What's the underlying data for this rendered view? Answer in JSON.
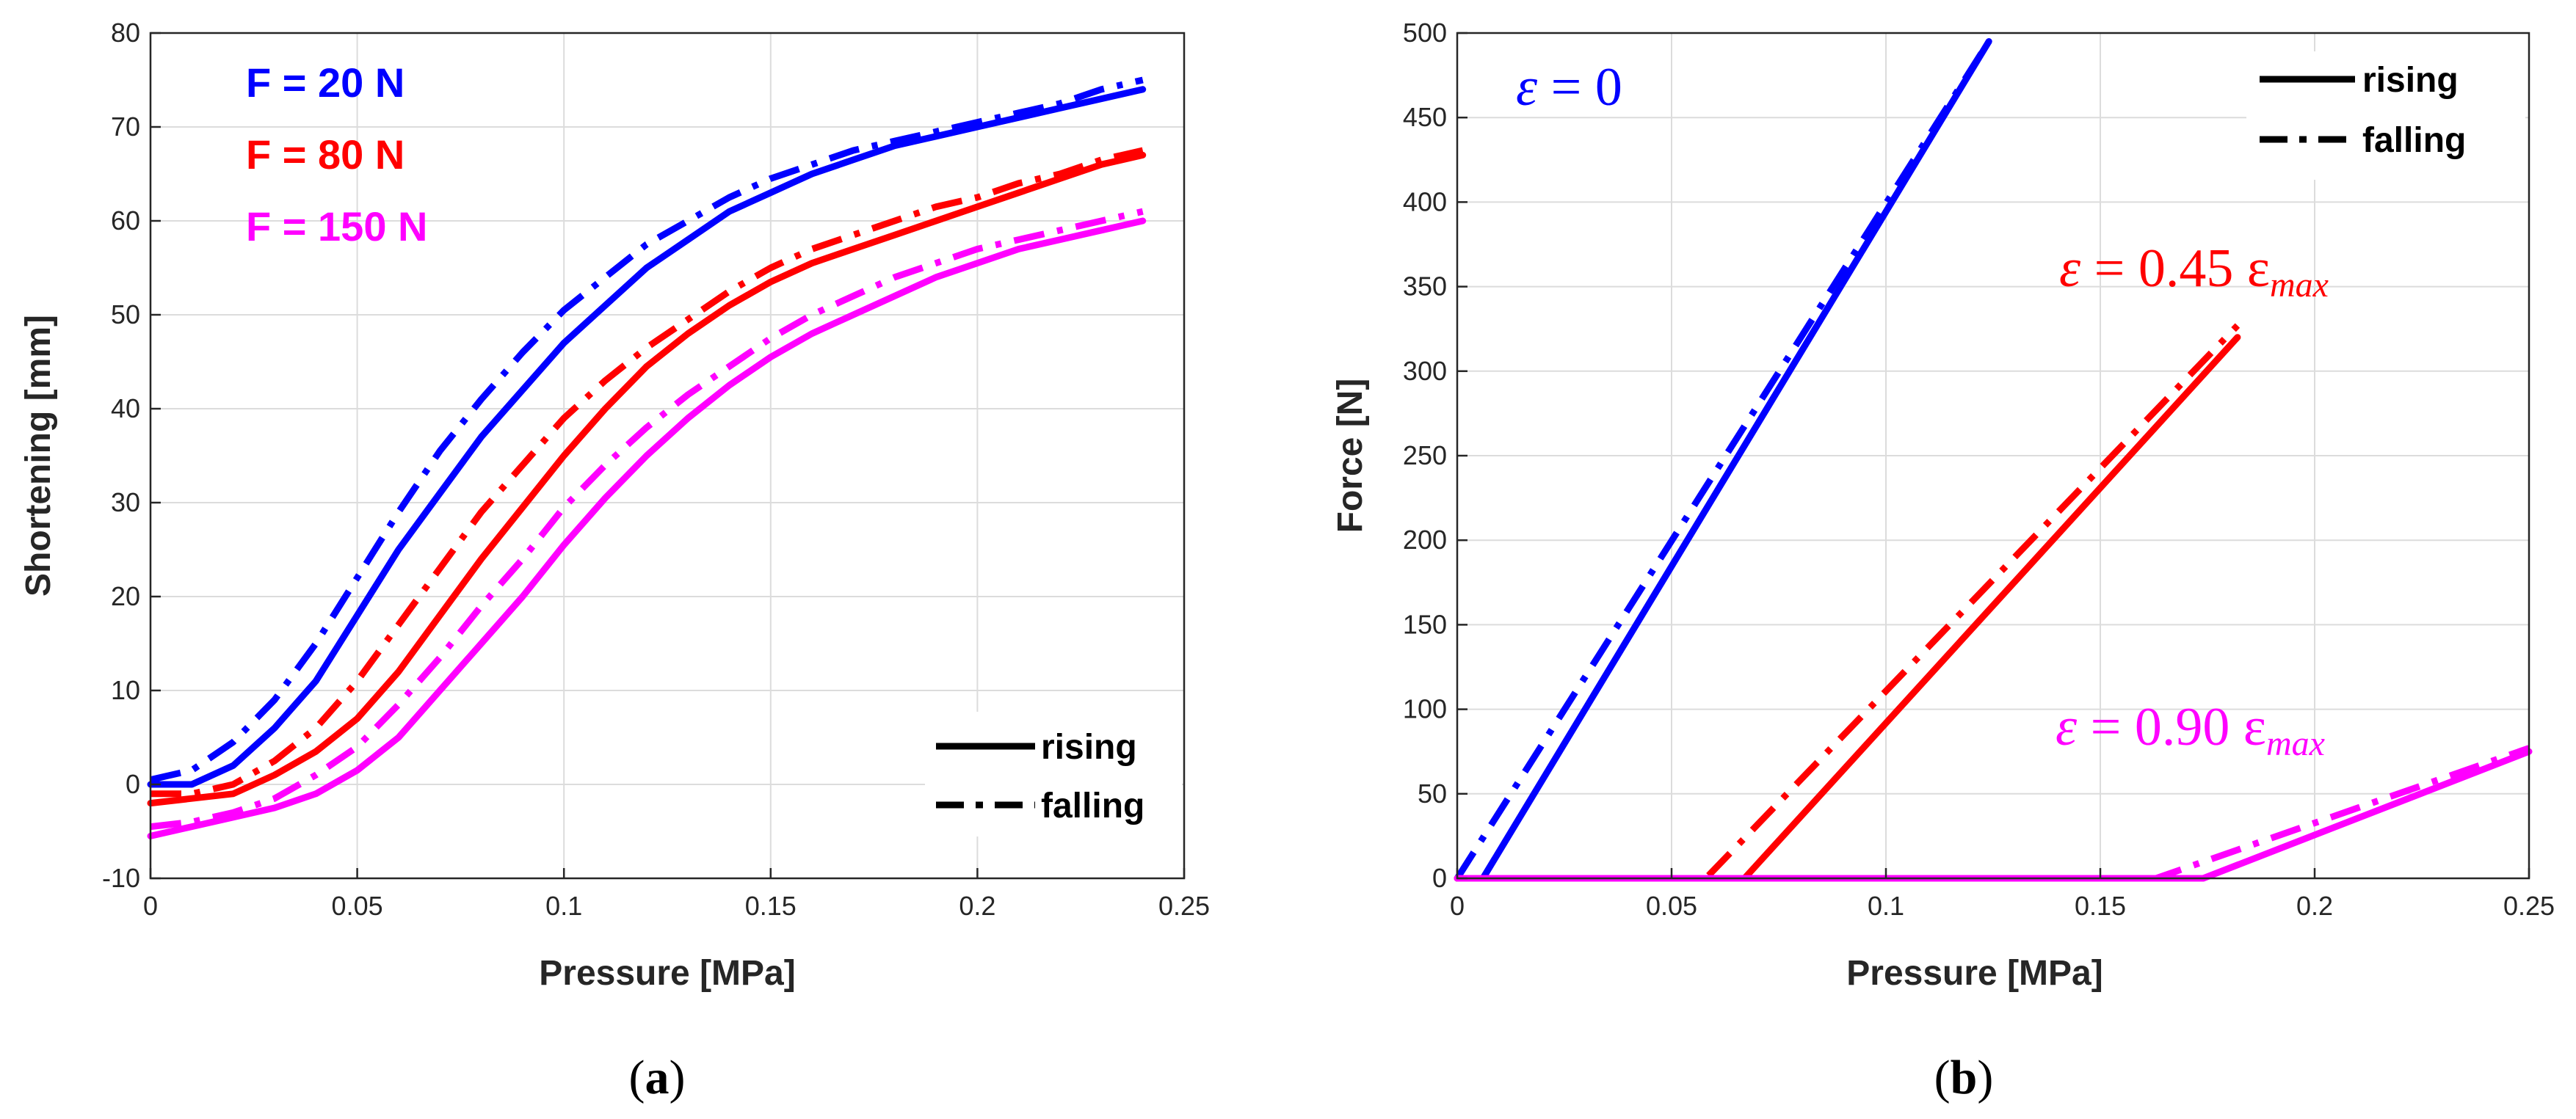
{
  "chart_data": [
    {
      "id": "a",
      "type": "line",
      "caption_letter": "a",
      "xlabel": "Pressure [MPa]",
      "ylabel": "Shortening [mm]",
      "xlim": [
        0,
        0.25
      ],
      "ylim": [
        -10,
        80
      ],
      "xticks": [
        0,
        0.05,
        0.1,
        0.15,
        0.2,
        0.25
      ],
      "xtick_labels": [
        "0",
        "0.05",
        "0.1",
        "0.15",
        "0.2",
        "0.25"
      ],
      "yticks": [
        -10,
        0,
        10,
        20,
        30,
        40,
        50,
        60,
        70,
        80
      ],
      "ytick_labels": [
        "-10",
        "0",
        "10",
        "20",
        "30",
        "40",
        "50",
        "60",
        "70",
        "80"
      ],
      "grid": true,
      "legend": {
        "position": "bottom-right",
        "entries": [
          {
            "label": "rising",
            "style": "solid"
          },
          {
            "label": "falling",
            "style": "dashdot"
          }
        ]
      },
      "annotations": [
        {
          "text": "F = 20 N",
          "color": "#0000ff"
        },
        {
          "text": "F = 80 N",
          "color": "#ff0000"
        },
        {
          "text": "F = 150 N",
          "color": "#ff00ff"
        }
      ],
      "series": [
        {
          "name": "F = 20 N rising",
          "color": "#0000ff",
          "style": "solid",
          "x": [
            0,
            0.01,
            0.02,
            0.03,
            0.04,
            0.05,
            0.06,
            0.07,
            0.08,
            0.09,
            0.1,
            0.11,
            0.12,
            0.13,
            0.14,
            0.15,
            0.16,
            0.17,
            0.18,
            0.19,
            0.2,
            0.21,
            0.22,
            0.23,
            0.24
          ],
          "y": [
            0,
            0,
            2,
            6,
            11,
            18,
            25,
            31,
            37,
            42,
            47,
            51,
            55,
            58,
            61,
            63,
            65,
            66.5,
            68,
            69,
            70,
            71,
            72,
            73,
            74
          ]
        },
        {
          "name": "F = 20 N falling",
          "color": "#0000ff",
          "style": "dashdot",
          "x": [
            0,
            0.01,
            0.02,
            0.03,
            0.04,
            0.05,
            0.06,
            0.07,
            0.08,
            0.09,
            0.1,
            0.11,
            0.12,
            0.13,
            0.14,
            0.15,
            0.16,
            0.17,
            0.18,
            0.19,
            0.2,
            0.21,
            0.22,
            0.23,
            0.24
          ],
          "y": [
            0.5,
            1.5,
            4.5,
            9,
            15,
            22,
            29,
            35.5,
            41,
            46,
            50.5,
            54,
            57.5,
            60,
            62.5,
            64.5,
            66,
            67.5,
            68.5,
            69.5,
            70.5,
            71.5,
            72.5,
            74,
            75
          ]
        },
        {
          "name": "F = 80 N rising",
          "color": "#ff0000",
          "style": "solid",
          "x": [
            0,
            0.01,
            0.02,
            0.03,
            0.04,
            0.05,
            0.06,
            0.07,
            0.08,
            0.09,
            0.1,
            0.11,
            0.12,
            0.13,
            0.14,
            0.15,
            0.16,
            0.17,
            0.18,
            0.19,
            0.2,
            0.21,
            0.22,
            0.23,
            0.24
          ],
          "y": [
            -2,
            -1.5,
            -1,
            1,
            3.5,
            7,
            12,
            18,
            24,
            29.5,
            35,
            40,
            44.5,
            48,
            51,
            53.5,
            55.5,
            57,
            58.5,
            60,
            61.5,
            63,
            64.5,
            66,
            67
          ]
        },
        {
          "name": "F = 80 N falling",
          "color": "#ff0000",
          "style": "dashdot",
          "x": [
            0,
            0.01,
            0.02,
            0.03,
            0.04,
            0.05,
            0.06,
            0.07,
            0.08,
            0.09,
            0.1,
            0.11,
            0.12,
            0.13,
            0.14,
            0.15,
            0.16,
            0.17,
            0.18,
            0.19,
            0.2,
            0.21,
            0.22,
            0.23,
            0.24
          ],
          "y": [
            -1,
            -1,
            0,
            2.5,
            6,
            11,
            17,
            23,
            29,
            34,
            39,
            43,
            46.5,
            49.5,
            52.5,
            55,
            57,
            58.5,
            60,
            61.5,
            62.5,
            64,
            65,
            66.5,
            67.5
          ]
        },
        {
          "name": "F = 150 N rising",
          "color": "#ff00ff",
          "style": "solid",
          "x": [
            0,
            0.01,
            0.02,
            0.03,
            0.04,
            0.05,
            0.06,
            0.07,
            0.08,
            0.09,
            0.1,
            0.11,
            0.12,
            0.13,
            0.14,
            0.15,
            0.16,
            0.17,
            0.18,
            0.19,
            0.2,
            0.21,
            0.22,
            0.23,
            0.24
          ],
          "y": [
            -5.5,
            -4.5,
            -3.5,
            -2.5,
            -1,
            1.5,
            5,
            10,
            15,
            20,
            25.5,
            30.5,
            35,
            39,
            42.5,
            45.5,
            48,
            50,
            52,
            54,
            55.5,
            57,
            58,
            59,
            60
          ]
        },
        {
          "name": "F = 150 N falling",
          "color": "#ff00ff",
          "style": "dashdot",
          "x": [
            0,
            0.01,
            0.02,
            0.03,
            0.04,
            0.05,
            0.06,
            0.07,
            0.08,
            0.09,
            0.1,
            0.11,
            0.12,
            0.13,
            0.14,
            0.15,
            0.16,
            0.17,
            0.18,
            0.19,
            0.2,
            0.21,
            0.22,
            0.23,
            0.24
          ],
          "y": [
            -4.5,
            -4,
            -3,
            -1.5,
            1,
            4,
            8.5,
            13.5,
            19,
            24,
            29.5,
            34,
            38,
            41.5,
            44.5,
            47.5,
            50,
            52,
            54,
            55.5,
            57,
            58,
            59,
            60,
            61
          ]
        }
      ]
    },
    {
      "id": "b",
      "type": "line",
      "caption_letter": "b",
      "xlabel": "Pressure [MPa]",
      "ylabel": "Force [N]",
      "xlim": [
        0,
        0.25
      ],
      "ylim": [
        0,
        500
      ],
      "xticks": [
        0,
        0.05,
        0.1,
        0.15,
        0.2,
        0.25
      ],
      "xtick_labels": [
        "0",
        "0.05",
        "0.1",
        "0.15",
        "0.2",
        "0.25"
      ],
      "yticks": [
        0,
        50,
        100,
        150,
        200,
        250,
        300,
        350,
        400,
        450,
        500
      ],
      "ytick_labels": [
        "0",
        "50",
        "100",
        "150",
        "200",
        "250",
        "300",
        "350",
        "400",
        "450",
        "500"
      ],
      "grid": true,
      "legend": {
        "position": "top-right",
        "entries": [
          {
            "label": "rising",
            "style": "solid"
          },
          {
            "label": "falling",
            "style": "dashdot"
          }
        ]
      },
      "annotations": [
        {
          "symbol": "ε",
          "rest": " = 0",
          "subscript": "",
          "color": "#0000ff"
        },
        {
          "symbol": "ε",
          "rest": " = 0.45 ε",
          "subscript": "max",
          "color": "#ff0000"
        },
        {
          "symbol": "ε",
          "rest": " = 0.90 ε",
          "subscript": "max",
          "color": "#ff00ff"
        }
      ],
      "series": [
        {
          "name": "ε = 0 rising",
          "color": "#0000ff",
          "style": "solid",
          "x": [
            0,
            0.006,
            0.124
          ],
          "y": [
            0,
            0,
            495
          ]
        },
        {
          "name": "ε = 0 falling",
          "color": "#0000ff",
          "style": "dashdot",
          "x": [
            0,
            0.124
          ],
          "y": [
            0,
            495
          ]
        },
        {
          "name": "ε = 0.45 εmax rising",
          "color": "#ff0000",
          "style": "solid",
          "x": [
            0,
            0.067,
            0.182
          ],
          "y": [
            0,
            0,
            320
          ]
        },
        {
          "name": "ε = 0.45 εmax falling",
          "color": "#ff0000",
          "style": "dashdot",
          "x": [
            0,
            0.058,
            0.182
          ],
          "y": [
            0,
            0,
            327
          ]
        },
        {
          "name": "ε = 0.90 εmax rising",
          "color": "#ff00ff",
          "style": "solid",
          "x": [
            0,
            0.174,
            0.25
          ],
          "y": [
            0,
            0,
            75
          ]
        },
        {
          "name": "ε = 0.90 εmax falling",
          "color": "#ff00ff",
          "style": "dashdot",
          "x": [
            0,
            0.163,
            0.25
          ],
          "y": [
            0,
            0,
            77
          ]
        }
      ]
    }
  ]
}
